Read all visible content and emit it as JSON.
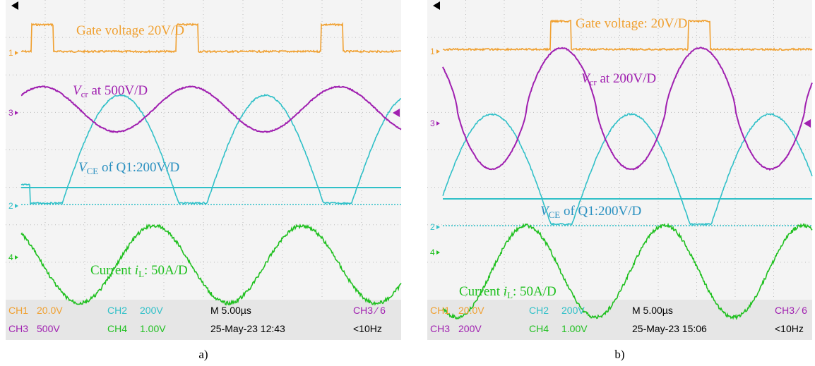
{
  "panels": [
    {
      "caption": "a)",
      "markers": [
        "1",
        "3",
        "2",
        "4"
      ],
      "gate": "Gate voltage 20V/D",
      "vcr": {
        "symbol": "V",
        "sub": "cr",
        "text": " at 500V/D"
      },
      "vce": {
        "symbol": "V",
        "sub": "CE",
        "text": " of Q1:200V/D"
      },
      "current": {
        "text": "Current ",
        "symbol": "i",
        "sub": "L",
        "tail": ": 50A/D"
      },
      "readout": [
        [
          "CH1",
          "20.0V",
          "CH2",
          "200V",
          "M 5.00µs",
          "CH3 ∕ 6"
        ],
        [
          "CH3",
          "500V",
          "CH4",
          "1.00V",
          "25-May-23 12:43",
          "<10Hz"
        ]
      ]
    },
    {
      "caption": "b)",
      "markers": [
        "1",
        "3",
        "2",
        "4"
      ],
      "gate": "Gate voltage: 20V/D",
      "vcr": {
        "symbol": "V",
        "sub": "cr",
        "text": " at 200V/D"
      },
      "vce": {
        "symbol": "V",
        "sub": "CE",
        "text": " of Q1:200V/D"
      },
      "current": {
        "text": "Current ",
        "symbol": "i",
        "sub": "L",
        "tail": ": 50A/D"
      },
      "readout": [
        [
          "CH1",
          "20.0V",
          "CH2",
          "200V",
          "M 5.00µs",
          "CH3 ∕ 6"
        ],
        [
          "CH3",
          "200V",
          "CH4",
          "1.00V",
          "25-May-23 15:06",
          "<10Hz"
        ]
      ]
    }
  ]
}
